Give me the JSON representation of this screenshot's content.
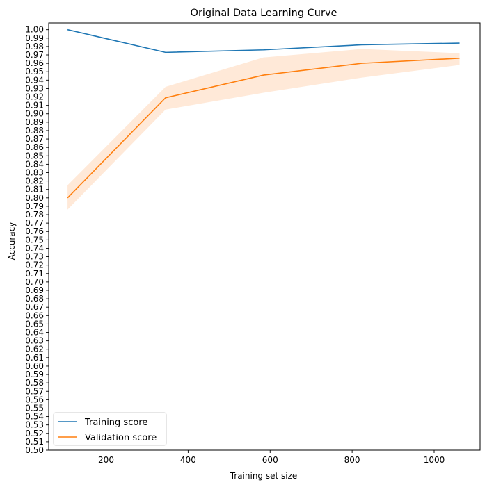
{
  "chart_data": {
    "type": "line",
    "title": "Original Data Learning Curve",
    "xlabel": "Training set size",
    "ylabel": "Accuracy",
    "xlim": [
      60,
      1112
    ],
    "ylim": [
      0.5,
      1.008
    ],
    "xticks": [
      200,
      400,
      600,
      800,
      1000
    ],
    "yticks": [
      0.5,
      0.51,
      0.52,
      0.53,
      0.54,
      0.55,
      0.56,
      0.57,
      0.58,
      0.59,
      0.6,
      0.61,
      0.62,
      0.63,
      0.64,
      0.65,
      0.66,
      0.67,
      0.68,
      0.69,
      0.7,
      0.71,
      0.72,
      0.73,
      0.74,
      0.75,
      0.76,
      0.77,
      0.78,
      0.79,
      0.8,
      0.81,
      0.82,
      0.83,
      0.84,
      0.85,
      0.86,
      0.87,
      0.88,
      0.89,
      0.9,
      0.91,
      0.92,
      0.93,
      0.94,
      0.95,
      0.96,
      0.97,
      0.98,
      0.99,
      1.0
    ],
    "grid": false,
    "legend_position": "lower-left",
    "x": [
      106,
      345,
      584,
      823,
      1062
    ],
    "series": [
      {
        "name": "Training score",
        "color": "#1f77b4",
        "values": [
          1.0,
          0.973,
          0.976,
          0.982,
          0.984
        ],
        "band_lower": [
          1.0,
          0.973,
          0.976,
          0.982,
          0.984
        ],
        "band_upper": [
          1.0,
          0.973,
          0.976,
          0.982,
          0.984
        ]
      },
      {
        "name": "Validation score",
        "color": "#ff7f0e",
        "band_color": "#ffe9d8",
        "values": [
          0.8,
          0.919,
          0.946,
          0.96,
          0.966
        ],
        "band_lower": [
          0.786,
          0.905,
          0.925,
          0.943,
          0.958
        ],
        "band_upper": [
          0.815,
          0.932,
          0.967,
          0.977,
          0.972
        ]
      }
    ]
  }
}
